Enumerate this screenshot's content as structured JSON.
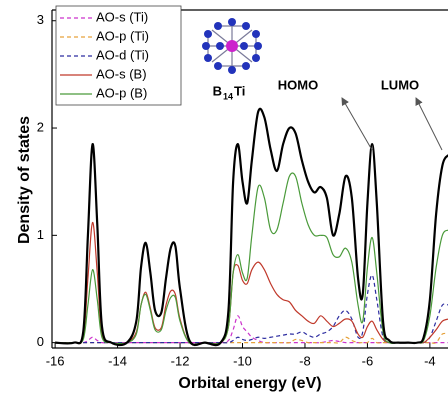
{
  "chart_data": {
    "type": "line",
    "x_label": "Orbital energy (eV)",
    "y_label": "Density of states",
    "x": [
      -16,
      -15.4,
      -15.1,
      -14.95,
      -14.8,
      -14.65,
      -14.5,
      -14.2,
      -13.7,
      -13.4,
      -13.25,
      -13.1,
      -12.95,
      -12.8,
      -12.6,
      -12.45,
      -12.3,
      -12.15,
      -12.0,
      -11.7,
      -11.2,
      -10.7,
      -10.45,
      -10.3,
      -10.15,
      -10.0,
      -9.85,
      -9.7,
      -9.5,
      -9.3,
      -9.1,
      -8.9,
      -8.7,
      -8.5,
      -8.3,
      -8.1,
      -7.9,
      -7.7,
      -7.5,
      -7.3,
      -7.1,
      -6.9,
      -6.7,
      -6.5,
      -6.3,
      -6.15,
      -6.0,
      -5.85,
      -5.7,
      -5.5,
      -5.3,
      -5.0,
      -4.7,
      -4.4,
      -4.2,
      -4.0,
      -3.8,
      -3.6,
      -3.4
    ],
    "series": [
      {
        "color": "#000000",
        "dashed": false,
        "in_legend": false,
        "values": [
          0,
          0,
          0.1,
          1.0,
          1.85,
          1.1,
          0.15,
          0,
          0,
          0.2,
          0.7,
          0.93,
          0.65,
          0.3,
          0.28,
          0.6,
          0.88,
          0.9,
          0.5,
          0.02,
          0,
          0,
          0.3,
          1.5,
          1.85,
          1.5,
          1.3,
          1.7,
          2.15,
          2.1,
          1.8,
          1.6,
          1.85,
          2.0,
          1.95,
          1.7,
          1.5,
          1.4,
          1.45,
          1.35,
          1.0,
          1.2,
          1.55,
          1.35,
          0.6,
          0.45,
          1.3,
          1.85,
          1.3,
          0.2,
          0.02,
          0,
          0,
          0,
          0.05,
          0.4,
          1.2,
          1.65,
          1.75
        ]
      },
      {
        "name": "AO-s (Ti)",
        "color": "#cc33cc",
        "dashed": true,
        "in_legend": true,
        "values": [
          0,
          0,
          0,
          0.02,
          0.05,
          0.02,
          0,
          0,
          0,
          0,
          0,
          0,
          0,
          0,
          0,
          0,
          0,
          0,
          0,
          0,
          0,
          0,
          0.02,
          0.12,
          0.25,
          0.15,
          0.1,
          0.05,
          0.02,
          0,
          0,
          0,
          0,
          0,
          0,
          0,
          0,
          0,
          0,
          0.01,
          0.02,
          0.01,
          0,
          0,
          0,
          0,
          0,
          0,
          0,
          0,
          0,
          0,
          0,
          0,
          0,
          0,
          0,
          0,
          0
        ]
      },
      {
        "name": "AO-p (Ti)",
        "color": "#e6a23c",
        "dashed": true,
        "in_legend": true,
        "values": [
          0,
          0,
          0,
          0,
          0,
          0,
          0,
          0,
          0,
          0,
          0,
          0,
          0,
          0,
          0,
          0,
          0,
          0,
          0,
          0,
          0,
          0,
          0,
          0,
          0,
          0,
          0,
          0,
          0,
          0,
          0,
          0,
          0,
          0,
          0.03,
          0.02,
          0,
          0,
          0,
          0,
          0,
          0,
          0.05,
          0.02,
          0,
          0,
          0,
          0.04,
          0,
          0,
          0,
          0,
          0,
          0,
          0,
          0,
          0,
          0.08,
          0.08
        ]
      },
      {
        "name": "AO-d (Ti)",
        "color": "#2c2ca0",
        "dashed": true,
        "in_legend": true,
        "values": [
          0,
          0,
          0,
          0,
          0,
          0,
          0,
          0,
          0,
          0,
          0,
          0,
          0,
          0,
          0,
          0,
          0,
          0,
          0,
          0,
          0,
          0,
          0,
          0.02,
          0.05,
          0.03,
          0.02,
          0.03,
          0.05,
          0.04,
          0.05,
          0.06,
          0.07,
          0.08,
          0.08,
          0.1,
          0.07,
          0.05,
          0.08,
          0.1,
          0.15,
          0.25,
          0.3,
          0.22,
          0.05,
          0.1,
          0.45,
          0.63,
          0.4,
          0.05,
          0,
          0,
          0,
          0,
          0,
          0.05,
          0.2,
          0.35,
          0.35
        ]
      },
      {
        "name": "AO-s (B)",
        "color": "#c0392b",
        "dashed": false,
        "in_legend": true,
        "values": [
          0,
          0,
          0.05,
          0.6,
          1.12,
          0.65,
          0.08,
          0,
          0,
          0.1,
          0.35,
          0.47,
          0.32,
          0.14,
          0.14,
          0.35,
          0.48,
          0.45,
          0.22,
          0,
          0,
          0,
          0.15,
          0.65,
          0.72,
          0.58,
          0.55,
          0.68,
          0.75,
          0.68,
          0.55,
          0.45,
          0.4,
          0.38,
          0.3,
          0.25,
          0.2,
          0.18,
          0.25,
          0.2,
          0.15,
          0.18,
          0.22,
          0.2,
          0.08,
          0.05,
          0.15,
          0.2,
          0.12,
          0.03,
          0,
          0,
          0,
          0,
          0,
          0.05,
          0.12,
          0.2,
          0.22
        ]
      },
      {
        "name": "AO-p (B)",
        "color": "#4a9a3a",
        "dashed": false,
        "in_legend": true,
        "values": [
          0,
          0,
          0.03,
          0.35,
          0.68,
          0.4,
          0.05,
          0,
          0,
          0.08,
          0.35,
          0.45,
          0.3,
          0.12,
          0.12,
          0.3,
          0.42,
          0.42,
          0.2,
          0,
          0,
          0,
          0.15,
          0.65,
          0.82,
          0.65,
          0.6,
          1.0,
          1.45,
          1.35,
          1.05,
          1.05,
          1.3,
          1.55,
          1.55,
          1.3,
          1.1,
          1.0,
          1.0,
          0.98,
          0.82,
          0.8,
          0.88,
          0.75,
          0.35,
          0.2,
          0.7,
          0.98,
          0.65,
          0.1,
          0,
          0,
          0,
          0,
          0.02,
          0.25,
          0.7,
          1.0,
          1.05
        ]
      }
    ],
    "xlim": [
      -16.1,
      -3.42
    ],
    "xticks": [
      -16,
      -14,
      -12,
      -10,
      -8,
      -6,
      -4
    ],
    "ylim": [
      -0.05,
      3.1
    ],
    "yticks": [
      0,
      1,
      2,
      3
    ],
    "legend": "top-left",
    "annotations": [
      "HOMO",
      "LUMO"
    ],
    "structure_label": {
      "base": "B",
      "subscript": "14",
      "suffix": "Ti"
    }
  }
}
